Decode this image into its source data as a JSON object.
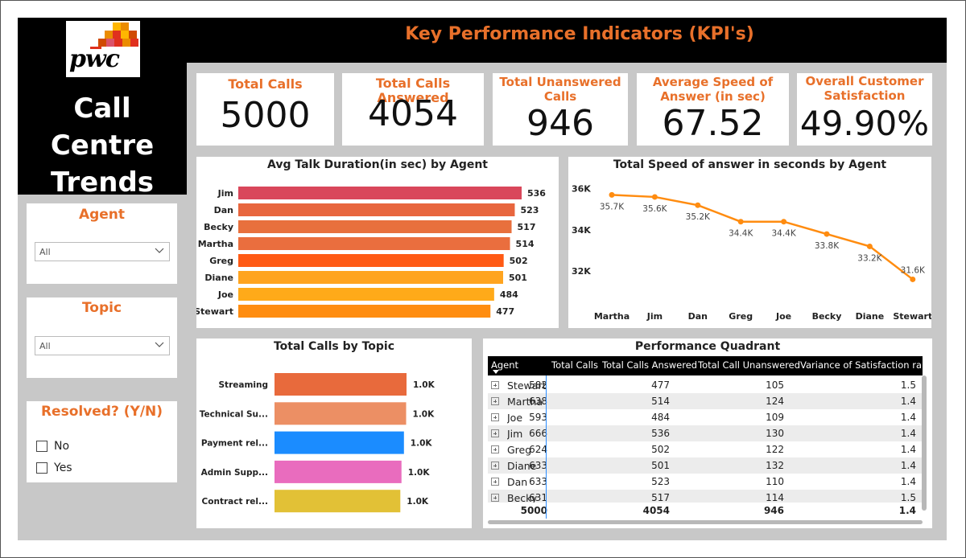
{
  "header": {
    "title": "Key Performance Indicators (KPI's)"
  },
  "logo": {
    "text": "pwc",
    "colors": [
      "#ffb600",
      "#eb8c00",
      "#e0301e",
      "#db536a",
      "#d04a02"
    ]
  },
  "app_title": {
    "line1": "Call Centre",
    "line2": "Trends"
  },
  "kpis": [
    {
      "label": "Total Calls",
      "value": "5000"
    },
    {
      "label": "Total Calls Answered",
      "value": "4054"
    },
    {
      "label_line1": "Total Unanswered",
      "label_line2": "Calls",
      "value": "946"
    },
    {
      "label_line1": "Average Speed of",
      "label_line2": "Answer (in sec)",
      "value": "67.52"
    },
    {
      "label_line1": "Overall Customer",
      "label_line2": "Satisfaction",
      "value": "49.90%"
    }
  ],
  "slicers": {
    "agent": {
      "title": "Agent",
      "selected": "All"
    },
    "topic": {
      "title": "Topic",
      "selected": "All"
    },
    "resolved": {
      "title": "Resolved? (Y/N)",
      "options": [
        "No",
        "Yes"
      ]
    }
  },
  "chart_data": [
    {
      "type": "bar",
      "orientation": "horizontal",
      "title": "Avg Talk Duration(in sec) by Agent",
      "categories": [
        "Jim",
        "Dan",
        "Becky",
        "Martha",
        "Greg",
        "Diane",
        "Joe",
        "Stewart"
      ],
      "values": [
        536,
        523,
        517,
        514,
        502,
        501,
        484,
        477
      ],
      "colors": [
        "#d9475b",
        "#e8663e",
        "#e8703d",
        "#ea6e3e",
        "#ff5a14",
        "#ffa41f",
        "#ffaa19",
        "#ff8d10"
      ],
      "data_labels": [
        "536",
        "523",
        "517",
        "514",
        "502",
        "501",
        "484",
        "477"
      ]
    },
    {
      "type": "line",
      "title": "Total Speed of answer in seconds by Agent",
      "categories": [
        "Martha",
        "Jim",
        "Dan",
        "Greg",
        "Joe",
        "Becky",
        "Diane",
        "Stewart"
      ],
      "values": [
        35700,
        35600,
        35200,
        34400,
        34400,
        33800,
        33200,
        31600
      ],
      "data_labels": [
        "35.7K",
        "35.6K",
        "35.2K",
        "34.4K",
        "34.4K",
        "33.8K",
        "33.2K",
        "31.6K"
      ],
      "yticks": [
        "36K",
        "34K",
        "32K"
      ],
      "ylim": [
        31500,
        36300
      ],
      "color": "#ff8c10"
    },
    {
      "type": "bar",
      "orientation": "horizontal",
      "title": "Total Calls by Topic",
      "categories": [
        "Streaming",
        "Technical Su...",
        "Payment rel...",
        "Admin Supp...",
        "Contract rel..."
      ],
      "values": [
        1022,
        1019,
        1002,
        983,
        974
      ],
      "colors": [
        "#e86a3c",
        "#ec8f64",
        "#1b8cff",
        "#e96cbe",
        "#e2c136"
      ],
      "data_labels": [
        "1.0K",
        "1.0K",
        "1.0K",
        "1.0K",
        "1.0K"
      ]
    },
    {
      "type": "table",
      "title": "Performance Quadrant",
      "columns": [
        "Agent",
        "Total Calls",
        "Total Calls Answered",
        "Total Call Unanswered",
        "Variance of Satisfaction rating"
      ],
      "rows": [
        {
          "agent": "Stewart",
          "total": "582",
          "answered": "477",
          "unanswered": "105",
          "variance": "1.5"
        },
        {
          "agent": "Martha",
          "total": "638",
          "answered": "514",
          "unanswered": "124",
          "variance": "1.4"
        },
        {
          "agent": "Joe",
          "total": "593",
          "answered": "484",
          "unanswered": "109",
          "variance": "1.4"
        },
        {
          "agent": "Jim",
          "total": "666",
          "answered": "536",
          "unanswered": "130",
          "variance": "1.4"
        },
        {
          "agent": "Greg",
          "total": "624",
          "answered": "502",
          "unanswered": "122",
          "variance": "1.4"
        },
        {
          "agent": "Diane",
          "total": "633",
          "answered": "501",
          "unanswered": "132",
          "variance": "1.4"
        },
        {
          "agent": "Dan",
          "total": "633",
          "answered": "523",
          "unanswered": "110",
          "variance": "1.4"
        },
        {
          "agent": "Becky",
          "total": "631",
          "answered": "517",
          "unanswered": "114",
          "variance": "1.5"
        }
      ],
      "totals": {
        "total": "5000",
        "answered": "4054",
        "unanswered": "946",
        "variance": "1.4"
      }
    }
  ]
}
